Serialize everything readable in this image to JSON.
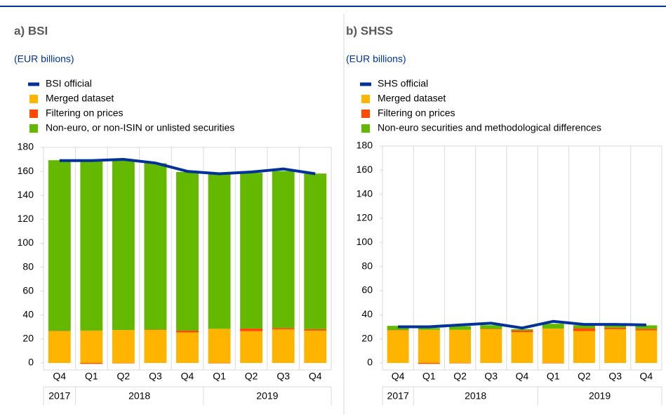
{
  "chart_data": [
    {
      "type": "bar",
      "title": "a) BSI",
      "subtitle": "(EUR billions)",
      "categories": [
        "Q4",
        "Q1",
        "Q2",
        "Q3",
        "Q4",
        "Q1",
        "Q2",
        "Q3",
        "Q4"
      ],
      "years": [
        "2017",
        "2018",
        "2018",
        "2018",
        "2018",
        "2019",
        "2019",
        "2019",
        "2019"
      ],
      "series": [
        {
          "name": "BSI official",
          "type": "line",
          "color": "#003299",
          "values": [
            169,
            169,
            170,
            167,
            160,
            158,
            159.5,
            162,
            158
          ]
        },
        {
          "name": "Merged dataset",
          "type": "bar",
          "color": "#ffb400",
          "values": [
            26.5,
            27,
            27.5,
            27.5,
            25.5,
            28.5,
            26.5,
            28,
            27
          ]
        },
        {
          "name": "Filtering on prices",
          "type": "bar",
          "color": "#ff4b00",
          "values": [
            0.3,
            -0.8,
            -0.3,
            0.3,
            1.5,
            -0.3,
            2.3,
            1.2,
            1.2
          ]
        },
        {
          "name": "Non-euro, or non-ISIN or unlisted securities",
          "type": "bar",
          "color": "#65b800",
          "values": [
            142.5,
            141.5,
            142,
            139,
            132.5,
            129,
            130,
            131,
            130
          ]
        }
      ],
      "ylim": [
        0,
        180
      ],
      "yticks": [
        0,
        20,
        40,
        60,
        80,
        100,
        120,
        140,
        160,
        180
      ]
    },
    {
      "type": "bar",
      "title": "b) SHSS",
      "subtitle": "(EUR billions)",
      "categories": [
        "Q4",
        "Q1",
        "Q2",
        "Q3",
        "Q4",
        "Q1",
        "Q2",
        "Q3",
        "Q4"
      ],
      "years": [
        "2017",
        "2018",
        "2018",
        "2018",
        "2018",
        "2019",
        "2019",
        "2019",
        "2019"
      ],
      "series": [
        {
          "name": "SHS official",
          "type": "line",
          "color": "#003299",
          "values": [
            30,
            30,
            31.5,
            33,
            29,
            34.5,
            32,
            32,
            31.5
          ]
        },
        {
          "name": "Merged dataset",
          "type": "bar",
          "color": "#ffb400",
          "values": [
            27,
            27.5,
            27.5,
            28,
            25.5,
            28.5,
            26.5,
            28,
            27
          ]
        },
        {
          "name": "Filtering on prices",
          "type": "bar",
          "color": "#ff4b00",
          "values": [
            0.3,
            -0.8,
            -0.3,
            0.3,
            1.5,
            -0.3,
            2.3,
            1.2,
            1.2
          ]
        },
        {
          "name": "Non-euro securities and methodological differences",
          "type": "bar",
          "color": "#65b800",
          "values": [
            3.5,
            1.5,
            3,
            3,
            1,
            4,
            2.5,
            2.5,
            3
          ]
        }
      ],
      "ylim": [
        0,
        180
      ],
      "yticks": [
        0,
        20,
        40,
        60,
        80,
        100,
        120,
        140,
        160,
        180
      ]
    }
  ]
}
